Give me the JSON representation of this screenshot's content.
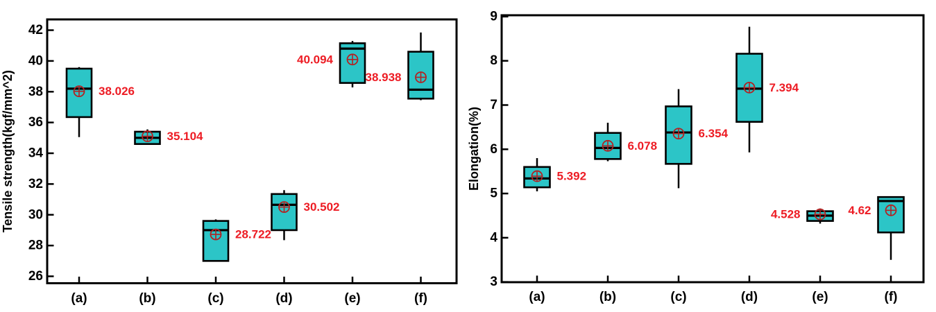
{
  "figure": {
    "background": "#ffffff",
    "colors": {
      "box_fill": "#2cc5c7",
      "box_border": "#000000",
      "median_line": "#000000",
      "whisker": "#000000",
      "axis": "#000000",
      "tick_text": "#000000",
      "mean_marker": "#b22222",
      "mean_label": "#ed1c24"
    }
  },
  "chart_data": [
    {
      "type": "box",
      "title": "",
      "xlabel": "",
      "ylabel": "Tensile strength(kgf/mm^2)",
      "ylim": [
        26,
        42
      ],
      "yticks": [
        26,
        28,
        30,
        32,
        34,
        36,
        38,
        40,
        42
      ],
      "grid": false,
      "legend": "none",
      "categories": [
        "(a)",
        "(b)",
        "(c)",
        "(d)",
        "(e)",
        "(f)"
      ],
      "boxes": [
        {
          "category": "(a)",
          "whisker_low": 35.05,
          "q1": 36.35,
          "median": 38.2,
          "q3": 39.5,
          "whisker_high": 39.6,
          "mean": 38.026,
          "mean_label": "38.026",
          "label_side": "right"
        },
        {
          "category": "(b)",
          "whisker_low": 34.6,
          "q1": 34.6,
          "median": 35.0,
          "q3": 35.4,
          "whisker_high": 35.55,
          "mean": 35.104,
          "mean_label": "35.104",
          "label_side": "right"
        },
        {
          "category": "(c)",
          "whisker_low": 27.0,
          "q1": 27.0,
          "median": 29.0,
          "q3": 29.6,
          "whisker_high": 29.7,
          "mean": 28.722,
          "mean_label": "28.722",
          "label_side": "right"
        },
        {
          "category": "(d)",
          "whisker_low": 28.35,
          "q1": 29.0,
          "median": 30.65,
          "q3": 31.35,
          "whisker_high": 31.6,
          "mean": 30.502,
          "mean_label": "30.502",
          "label_side": "right"
        },
        {
          "category": "(e)",
          "whisker_low": 38.28,
          "q1": 38.57,
          "median": 40.8,
          "q3": 41.15,
          "whisker_high": 41.3,
          "mean": 40.094,
          "mean_label": "40.094",
          "label_side": "left"
        },
        {
          "category": "(f)",
          "whisker_low": 37.45,
          "q1": 37.55,
          "median": 38.13,
          "q3": 40.6,
          "whisker_high": 41.85,
          "mean": 38.938,
          "mean_label": "38.938",
          "label_side": "left"
        }
      ]
    },
    {
      "type": "box",
      "title": "",
      "xlabel": "",
      "ylabel": "Elongation(%)",
      "ylim": [
        3,
        9
      ],
      "yticks": [
        3,
        4,
        5,
        6,
        7,
        8,
        9
      ],
      "grid": false,
      "legend": "none",
      "categories": [
        "(a)",
        "(b)",
        "(c)",
        "(d)",
        "(e)",
        "(f)"
      ],
      "boxes": [
        {
          "category": "(a)",
          "whisker_low": 5.05,
          "q1": 5.14,
          "median": 5.34,
          "q3": 5.6,
          "whisker_high": 5.8,
          "mean": 5.392,
          "mean_label": "5.392",
          "label_side": "right"
        },
        {
          "category": "(b)",
          "whisker_low": 5.73,
          "q1": 5.78,
          "median": 6.03,
          "q3": 6.37,
          "whisker_high": 6.6,
          "mean": 6.078,
          "mean_label": "6.078",
          "label_side": "right"
        },
        {
          "category": "(c)",
          "whisker_low": 5.12,
          "q1": 5.67,
          "median": 6.38,
          "q3": 6.97,
          "whisker_high": 7.36,
          "mean": 6.354,
          "mean_label": "6.354",
          "label_side": "right"
        },
        {
          "category": "(d)",
          "whisker_low": 5.93,
          "q1": 6.62,
          "median": 7.37,
          "q3": 8.16,
          "whisker_high": 8.77,
          "mean": 7.394,
          "mean_label": "7.394",
          "label_side": "right"
        },
        {
          "category": "(e)",
          "whisker_low": 4.32,
          "q1": 4.38,
          "median": 4.5,
          "q3": 4.6,
          "whisker_high": 4.66,
          "mean": 4.528,
          "mean_label": "4.528",
          "label_side": "left"
        },
        {
          "category": "(f)",
          "whisker_low": 3.5,
          "q1": 4.12,
          "median": 4.83,
          "q3": 4.92,
          "whisker_high": 4.92,
          "mean": 4.62,
          "mean_label": "4.62",
          "label_side": "left"
        }
      ]
    }
  ]
}
